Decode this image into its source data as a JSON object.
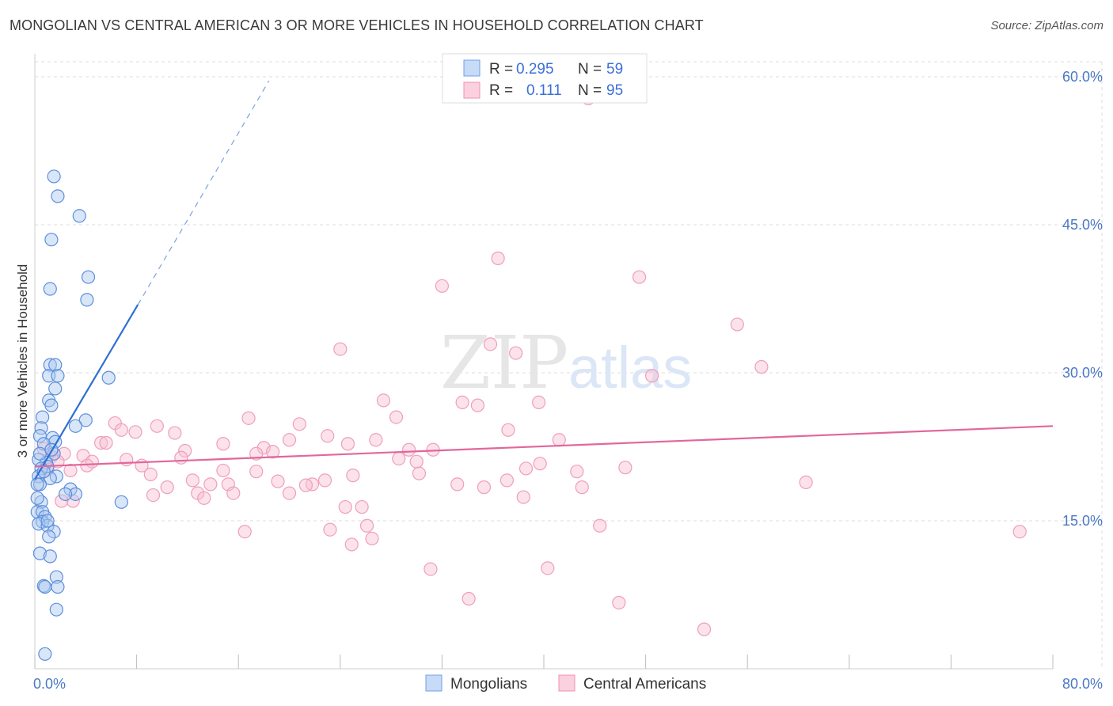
{
  "header": {
    "title": "MONGOLIAN VS CENTRAL AMERICAN 3 OR MORE VEHICLES IN HOUSEHOLD CORRELATION CHART",
    "source": "Source: ZipAtlas.com"
  },
  "watermark": {
    "zip": "ZIP",
    "atlas": "atlas"
  },
  "legend_top": {
    "rows": [
      {
        "r_label": "R =",
        "r_value": "0.295",
        "n_label": "N =",
        "n_value": "59",
        "color": "#6fa0e8"
      },
      {
        "r_label": "R =",
        "r_value": "0.111",
        "n_label": "N =",
        "n_value": "95",
        "color": "#f08fb0"
      }
    ]
  },
  "legend_bottom": {
    "items": [
      {
        "label": "Mongolians",
        "color": "#6fa0e8"
      },
      {
        "label": "Central Americans",
        "color": "#f08fb0"
      }
    ]
  },
  "chart_data": {
    "type": "scatter",
    "title": "MONGOLIAN VS CENTRAL AMERICAN 3 OR MORE VEHICLES IN HOUSEHOLD CORRELATION CHART",
    "xlabel": "",
    "ylabel": "3 or more Vehicles in Household",
    "xlim": [
      0,
      80
    ],
    "ylim": [
      0,
      60
    ],
    "x_tick_labels": [
      {
        "value": 0,
        "label": "0.0%"
      },
      {
        "value": 80,
        "label": "80.0%"
      }
    ],
    "y_tick_labels": [
      {
        "value": 15,
        "label": "15.0%"
      },
      {
        "value": 30,
        "label": "30.0%"
      },
      {
        "value": 45,
        "label": "45.0%"
      },
      {
        "value": 60,
        "label": "60.0%"
      }
    ],
    "grid": true,
    "legend_position": "top-center",
    "series": [
      {
        "name": "Mongolians",
        "color": "#6fa0e8",
        "trend": {
          "x": [
            0,
            8.1
          ],
          "y": [
            19.2,
            36.9
          ],
          "dashed_extension": {
            "x": [
              8.1,
              18.4
            ],
            "y": [
              36.9,
              59.6
            ]
          }
        },
        "points": [
          [
            1.5,
            49.9
          ],
          [
            1.8,
            47.9
          ],
          [
            3.5,
            45.9
          ],
          [
            1.3,
            43.5
          ],
          [
            4.2,
            39.7
          ],
          [
            1.2,
            38.5
          ],
          [
            4.1,
            37.4
          ],
          [
            1.2,
            30.8
          ],
          [
            1.6,
            30.8
          ],
          [
            1.1,
            29.7
          ],
          [
            1.8,
            29.7
          ],
          [
            5.8,
            29.5
          ],
          [
            1.6,
            28.4
          ],
          [
            1.1,
            27.2
          ],
          [
            1.3,
            26.7
          ],
          [
            0.6,
            25.5
          ],
          [
            4.0,
            25.2
          ],
          [
            3.2,
            24.6
          ],
          [
            0.5,
            24.4
          ],
          [
            0.4,
            23.6
          ],
          [
            1.4,
            23.4
          ],
          [
            1.6,
            23.0
          ],
          [
            0.7,
            22.8
          ],
          [
            1.5,
            21.8
          ],
          [
            0.3,
            21.2
          ],
          [
            0.9,
            20.9
          ],
          [
            1.0,
            20.5
          ],
          [
            0.5,
            20.3
          ],
          [
            0.3,
            19.5
          ],
          [
            1.7,
            19.5
          ],
          [
            1.2,
            19.3
          ],
          [
            0.4,
            18.7
          ],
          [
            0.2,
            18.7
          ],
          [
            2.8,
            18.2
          ],
          [
            3.2,
            17.7
          ],
          [
            2.4,
            17.7
          ],
          [
            6.8,
            16.9
          ],
          [
            0.5,
            16.9
          ],
          [
            0.2,
            15.9
          ],
          [
            0.6,
            15.9
          ],
          [
            0.8,
            15.4
          ],
          [
            0.6,
            14.9
          ],
          [
            0.3,
            14.7
          ],
          [
            1.0,
            14.5
          ],
          [
            1.5,
            13.9
          ],
          [
            1.1,
            13.4
          ],
          [
            0.4,
            11.7
          ],
          [
            1.2,
            11.4
          ],
          [
            1.7,
            9.3
          ],
          [
            0.7,
            8.4
          ],
          [
            0.8,
            8.3
          ],
          [
            1.8,
            8.3
          ],
          [
            1.7,
            6.0
          ],
          [
            0.8,
            1.5
          ],
          [
            0.4,
            21.8
          ],
          [
            0.7,
            20.0
          ],
          [
            1.3,
            22.2
          ],
          [
            0.2,
            17.3
          ],
          [
            1.0,
            15.0
          ]
        ]
      },
      {
        "name": "Central Americans",
        "color": "#f08fb0",
        "trend": {
          "x": [
            0,
            80
          ],
          "y": [
            20.5,
            24.6
          ]
        },
        "points": [
          [
            43.5,
            57.8
          ],
          [
            36.4,
            41.6
          ],
          [
            47.5,
            39.7
          ],
          [
            32.0,
            38.8
          ],
          [
            55.2,
            34.9
          ],
          [
            24.0,
            32.4
          ],
          [
            35.8,
            32.9
          ],
          [
            37.8,
            32.0
          ],
          [
            57.1,
            30.6
          ],
          [
            48.5,
            29.7
          ],
          [
            27.4,
            27.2
          ],
          [
            33.6,
            27.0
          ],
          [
            34.8,
            26.7
          ],
          [
            39.6,
            27.0
          ],
          [
            28.4,
            25.5
          ],
          [
            16.8,
            25.4
          ],
          [
            6.3,
            24.9
          ],
          [
            9.6,
            24.6
          ],
          [
            6.8,
            24.2
          ],
          [
            7.9,
            24.0
          ],
          [
            11.0,
            23.9
          ],
          [
            20.8,
            24.8
          ],
          [
            37.2,
            24.2
          ],
          [
            23.0,
            23.6
          ],
          [
            20.0,
            23.2
          ],
          [
            26.8,
            23.2
          ],
          [
            41.2,
            23.2
          ],
          [
            5.2,
            22.9
          ],
          [
            5.6,
            22.9
          ],
          [
            14.8,
            22.8
          ],
          [
            24.6,
            22.8
          ],
          [
            18.0,
            22.4
          ],
          [
            29.4,
            22.2
          ],
          [
            31.3,
            22.2
          ],
          [
            11.8,
            22.1
          ],
          [
            2.3,
            21.8
          ],
          [
            3.8,
            21.6
          ],
          [
            1.3,
            21.5
          ],
          [
            17.4,
            21.8
          ],
          [
            18.7,
            22.0
          ],
          [
            11.5,
            21.4
          ],
          [
            4.5,
            21.0
          ],
          [
            7.2,
            21.2
          ],
          [
            30.0,
            21.0
          ],
          [
            28.6,
            21.3
          ],
          [
            4.1,
            20.6
          ],
          [
            8.4,
            20.6
          ],
          [
            39.7,
            20.8
          ],
          [
            38.6,
            20.3
          ],
          [
            14.8,
            20.1
          ],
          [
            17.4,
            20.0
          ],
          [
            2.8,
            20.1
          ],
          [
            9.1,
            19.7
          ],
          [
            25.0,
            19.6
          ],
          [
            30.2,
            19.8
          ],
          [
            42.6,
            20.0
          ],
          [
            46.4,
            20.4
          ],
          [
            12.4,
            19.1
          ],
          [
            13.8,
            18.7
          ],
          [
            15.2,
            18.7
          ],
          [
            22.8,
            19.1
          ],
          [
            21.8,
            18.7
          ],
          [
            19.1,
            19.0
          ],
          [
            33.2,
            18.7
          ],
          [
            37.1,
            19.1
          ],
          [
            43.0,
            18.4
          ],
          [
            60.6,
            18.9
          ],
          [
            10.4,
            18.4
          ],
          [
            9.3,
            17.6
          ],
          [
            12.8,
            17.8
          ],
          [
            15.6,
            17.8
          ],
          [
            20.0,
            17.8
          ],
          [
            21.3,
            18.6
          ],
          [
            35.3,
            18.4
          ],
          [
            13.3,
            17.3
          ],
          [
            38.4,
            17.4
          ],
          [
            3.0,
            17.0
          ],
          [
            2.1,
            17.0
          ],
          [
            24.4,
            16.4
          ],
          [
            25.7,
            16.4
          ],
          [
            26.1,
            14.5
          ],
          [
            44.4,
            14.5
          ],
          [
            16.5,
            13.9
          ],
          [
            23.2,
            14.1
          ],
          [
            26.5,
            13.2
          ],
          [
            24.9,
            12.6
          ],
          [
            31.1,
            10.1
          ],
          [
            40.3,
            10.2
          ],
          [
            34.1,
            7.1
          ],
          [
            45.9,
            6.7
          ],
          [
            52.6,
            4.0
          ],
          [
            77.4,
            13.9
          ],
          [
            1.0,
            20.2
          ],
          [
            1.8,
            21.0
          ],
          [
            0.7,
            22.3
          ]
        ]
      }
    ]
  }
}
